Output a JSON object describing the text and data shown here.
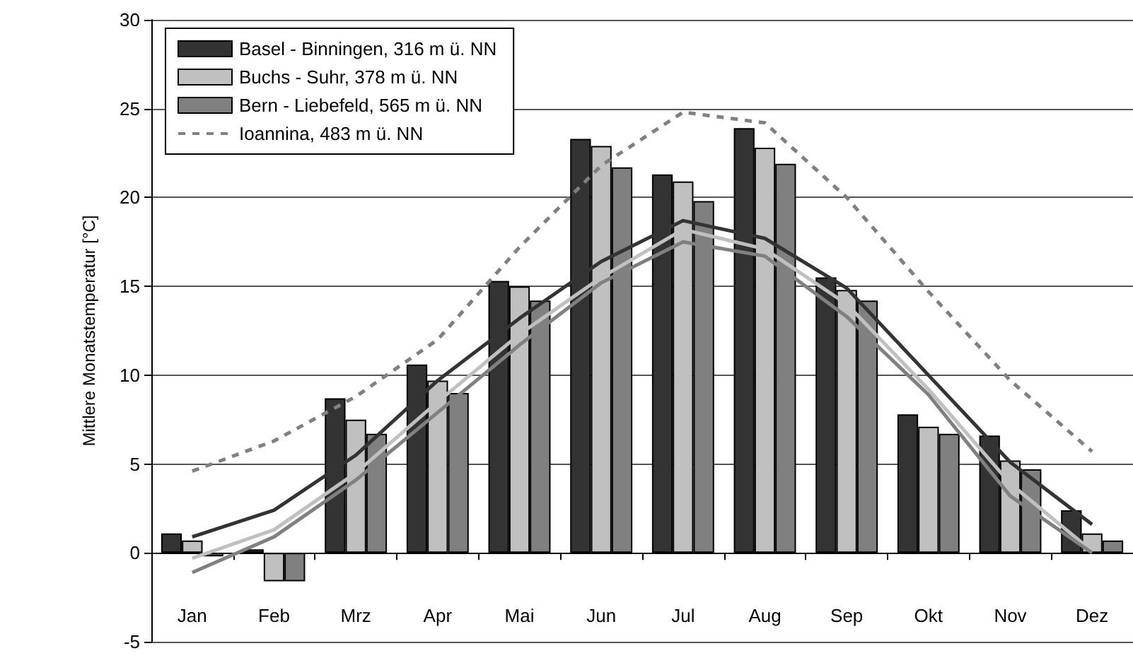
{
  "chart_data": {
    "type": "bar",
    "ylabel": "Mittlere Monatstemperatur [°C]",
    "categories": [
      "Jan",
      "Feb",
      "Mrz",
      "Apr",
      "Mai",
      "Jun",
      "Jul",
      "Aug",
      "Sep",
      "Okt",
      "Nov",
      "Dez"
    ],
    "series": [
      {
        "name": "Basel - Binningen, 316 m ü. NN",
        "color": "#333333",
        "values": [
          1.1,
          0.2,
          8.7,
          10.6,
          15.3,
          23.3,
          21.3,
          23.9,
          15.5,
          7.8,
          6.6,
          2.4
        ]
      },
      {
        "name": "Buchs - Suhr, 378 m ü. NN",
        "color": "#c0c0c0",
        "values": [
          0.7,
          -1.6,
          7.5,
          9.7,
          15.0,
          22.9,
          20.9,
          22.8,
          14.8,
          7.1,
          5.2,
          1.1
        ]
      },
      {
        "name": "Bern - Liebefeld, 565 m ü. NN",
        "color": "#808080",
        "values": [
          -0.2,
          -1.6,
          6.7,
          9.0,
          14.2,
          21.7,
          19.8,
          21.9,
          14.2,
          6.7,
          4.7,
          0.7
        ]
      },
      {
        "type": "line",
        "color": "#333333",
        "line_style": "solid",
        "values": [
          0.9,
          2.4,
          5.5,
          9.7,
          13.2,
          16.4,
          18.7,
          17.7,
          14.9,
          10.0,
          5.1,
          1.6
        ]
      },
      {
        "type": "line",
        "color": "#c0c0c0",
        "line_style": "solid",
        "values": [
          -0.3,
          1.3,
          4.5,
          8.5,
          12.3,
          15.5,
          18.2,
          17.1,
          14.0,
          9.2,
          3.9,
          0.1
        ]
      },
      {
        "type": "line",
        "color": "#808080",
        "line_style": "solid",
        "values": [
          -1.1,
          0.9,
          4.1,
          7.9,
          11.7,
          15.2,
          17.5,
          16.7,
          13.3,
          8.9,
          3.2,
          0.0
        ]
      },
      {
        "type": "line",
        "name": "Ioannina, 483 m ü. NN",
        "color": "#808080",
        "line_style": "dashed",
        "values": [
          4.6,
          6.3,
          8.8,
          12.0,
          17.2,
          21.8,
          24.8,
          24.2,
          20.0,
          14.7,
          9.7,
          5.7
        ]
      }
    ],
    "ylim": [
      -5,
      30
    ],
    "yticks": [
      -5,
      0,
      5,
      10,
      15,
      20,
      25,
      30
    ],
    "grid": "y",
    "legend": "top left",
    "marker": "none"
  }
}
